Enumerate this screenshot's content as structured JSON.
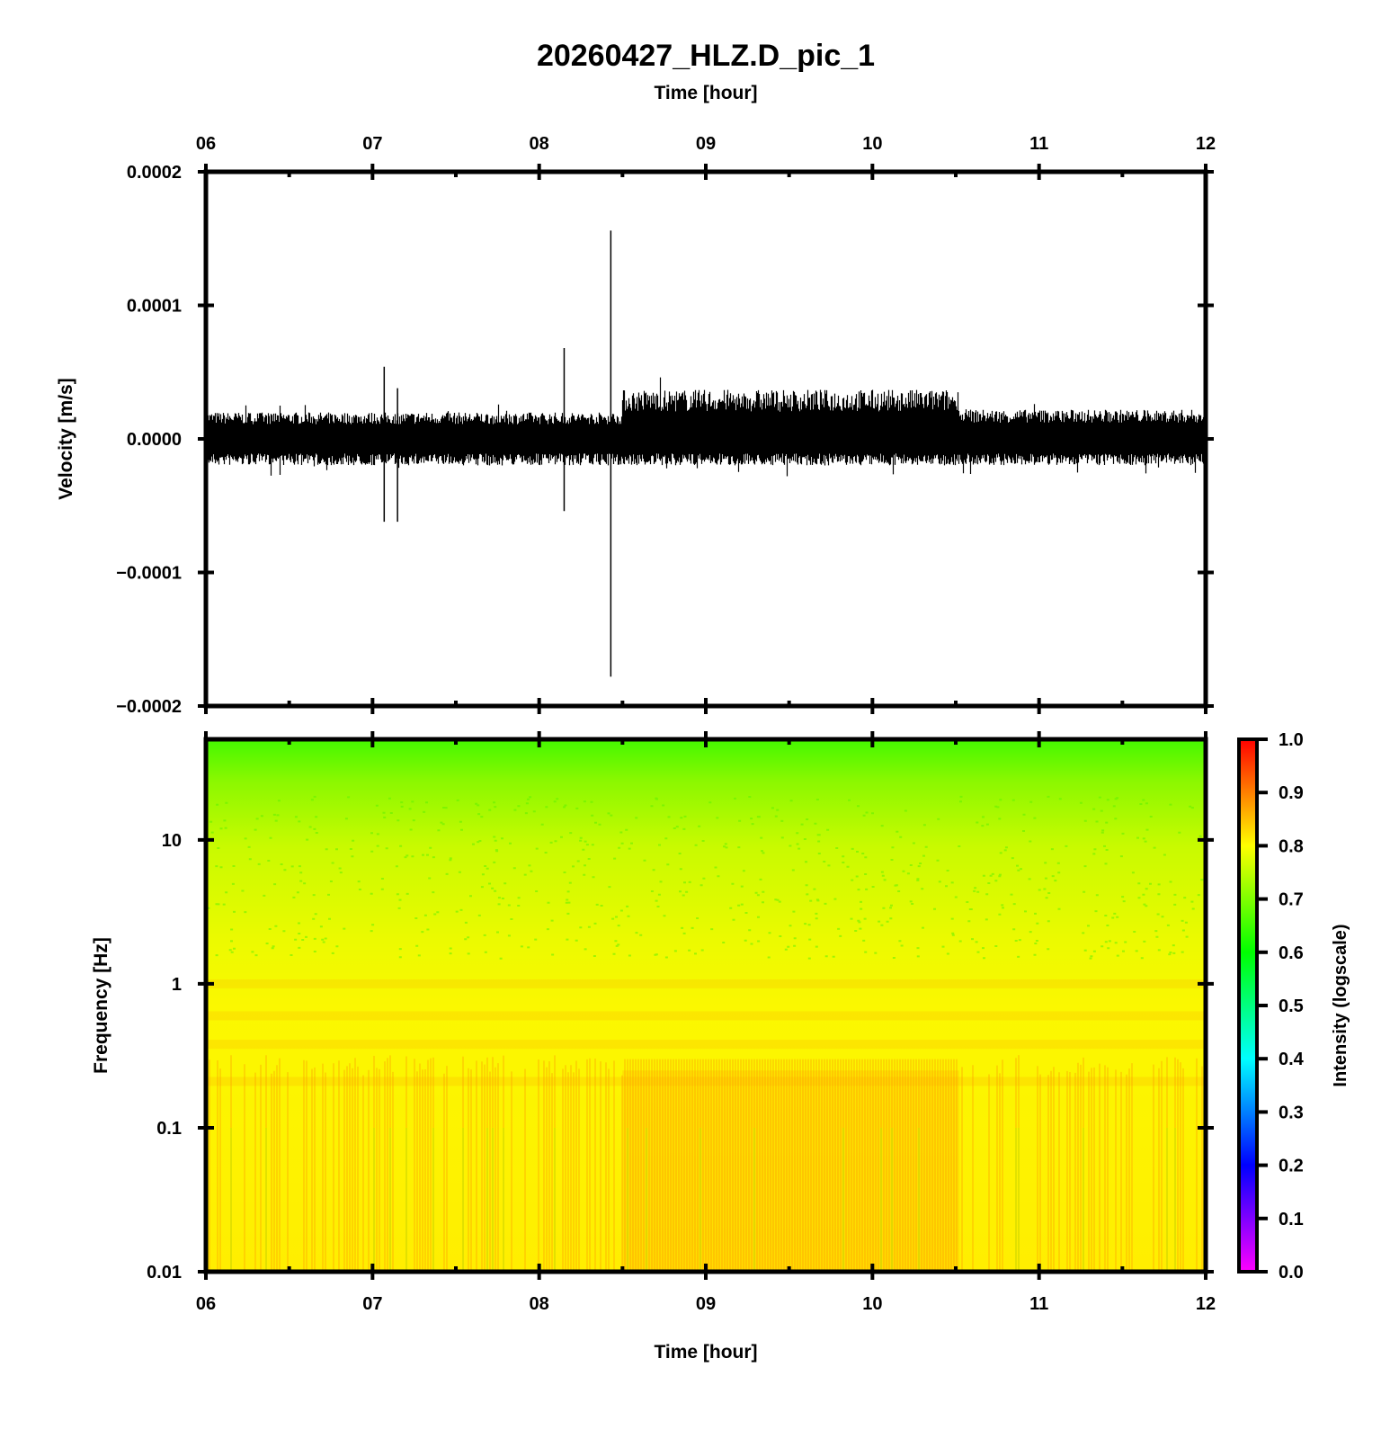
{
  "title": "20260427_HLZ.D_pic_1",
  "chart_data": [
    {
      "type": "line",
      "panel": "seismogram",
      "top_xlabel": "Time [hour]",
      "xlabel": "",
      "ylabel": "Velocity [m/s]",
      "x_ticks": [
        "06",
        "07",
        "08",
        "09",
        "10",
        "11",
        "12"
      ],
      "xlim": [
        6,
        12
      ],
      "y_ticks": [
        "0.0002",
        "0.0001",
        "0.0000",
        "−0.0001",
        "−0.0002"
      ],
      "ylim": [
        -0.0002,
        0.0002
      ],
      "noise_envelope": [
        {
          "x_start": 6.0,
          "x_end": 8.5,
          "upper": 2e-05,
          "lower": -2e-05
        },
        {
          "x_start": 8.5,
          "x_end": 10.52,
          "upper": 3.7e-05,
          "lower": -2e-05
        },
        {
          "x_start": 10.52,
          "x_end": 12.0,
          "upper": 2.2e-05,
          "lower": -2e-05
        }
      ],
      "spikes": [
        {
          "x": 7.07,
          "max": 5.4e-05,
          "min": -6.2e-05
        },
        {
          "x": 7.15,
          "max": 3.8e-05,
          "min": -6.2e-05
        },
        {
          "x": 8.15,
          "max": 6.8e-05,
          "min": -5.4e-05
        },
        {
          "x": 8.43,
          "max": 0.000156,
          "min": -0.000178
        }
      ],
      "color": "#000000"
    },
    {
      "type": "heatmap",
      "panel": "spectrogram",
      "xlabel": "Time [hour]",
      "ylabel": "Frequency [Hz]",
      "x_ticks": [
        "06",
        "07",
        "08",
        "09",
        "10",
        "11",
        "12"
      ],
      "xlim": [
        6,
        12
      ],
      "y_ticks": [
        "10",
        "1",
        "0.1",
        "0.01"
      ],
      "y_scale": "log",
      "ylim": [
        0.01,
        50
      ],
      "colorbar": {
        "label": "Intensity (logscale)",
        "ticks": [
          "1.0",
          "0.9",
          "0.8",
          "0.7",
          "0.6",
          "0.5",
          "0.4",
          "0.3",
          "0.2",
          "0.1",
          "0.0"
        ],
        "range": [
          0,
          1
        ],
        "colormap": [
          "#ff00ff",
          "#0000ff",
          "#00ffff",
          "#00ff00",
          "#ffff00",
          "#ff0000"
        ]
      },
      "intensity_profile": [
        {
          "freq": 50,
          "intensity": 0.64
        },
        {
          "freq": 20,
          "intensity": 0.7
        },
        {
          "freq": 10,
          "intensity": 0.74
        },
        {
          "freq": 3,
          "intensity": 0.77
        },
        {
          "freq": 1,
          "intensity": 0.8
        },
        {
          "freq": 0.1,
          "intensity": 0.81
        },
        {
          "freq": 0.01,
          "intensity": 0.82
        }
      ],
      "elevated_interval": {
        "x_start": 8.5,
        "x_end": 10.52,
        "intensity_boost": 0.05
      }
    }
  ]
}
